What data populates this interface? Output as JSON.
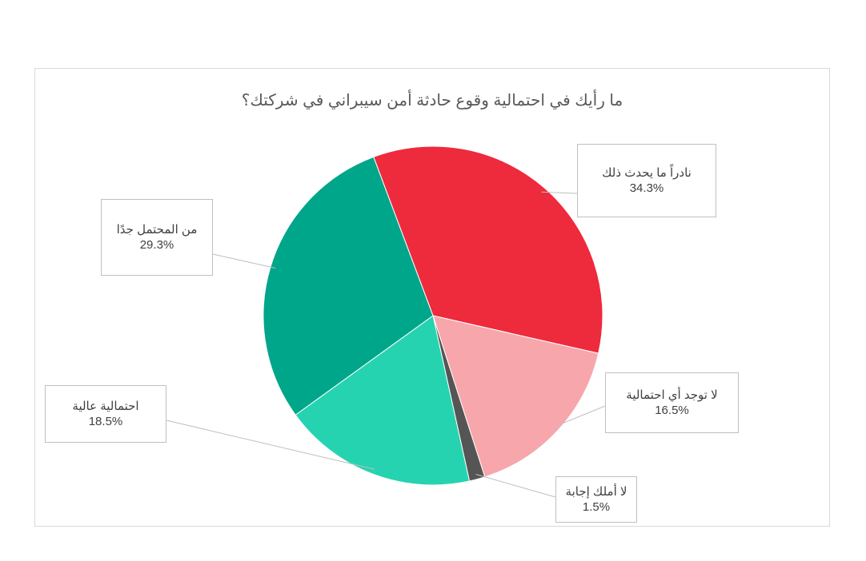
{
  "chart_data": {
    "type": "pie",
    "title": "ما رأيك في احتمالية وقوع حادثة أمن سيبراني في شركتك؟",
    "categories": [
      "نادراً ما يحدث ذلك",
      "لا توجد أي احتمالية",
      "لا أملك إجابة",
      "احتمالية عالية",
      "من المحتمل جدًا"
    ],
    "values": [
      34.3,
      16.5,
      1.5,
      18.5,
      29.3
    ],
    "value_labels": [
      "34.3%",
      "16.5%",
      "1.5%",
      "18.5%",
      "29.3%"
    ],
    "colors": [
      "#ee2a3d",
      "#f7a6ab",
      "#555555",
      "#26d3b0",
      "#00a68a"
    ],
    "legend": "none",
    "label_style": "callouts"
  }
}
